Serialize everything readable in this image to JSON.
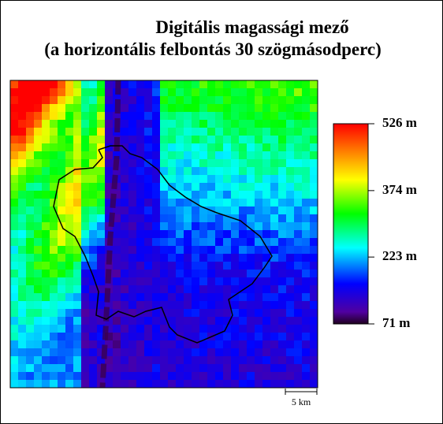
{
  "title": [
    "Digitális magassági mező",
    "(a horizontális felbontás 30 szögmásodperc)"
  ],
  "legend": {
    "ticks": [
      {
        "value": 526,
        "label": "526 m"
      },
      {
        "value": 374,
        "label": "374 m"
      },
      {
        "value": 223,
        "label": "223 m"
      },
      {
        "value": 71,
        "label": "71 m"
      }
    ]
  },
  "scale_bar": {
    "label": "5 km"
  }
}
